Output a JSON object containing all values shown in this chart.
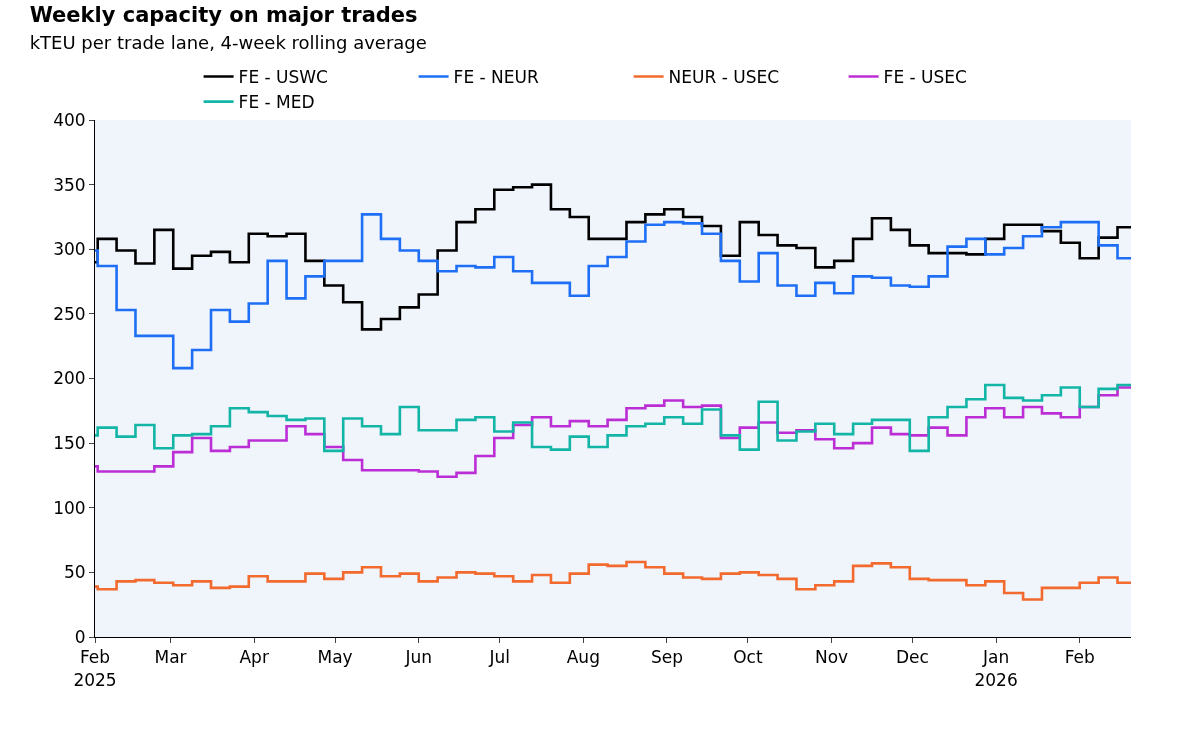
{
  "chart_data": {
    "type": "step",
    "title": "Weekly capacity on major trades",
    "subtitle": "kTEU per trade lane, 4-week rolling average",
    "x": [
      "2025-02-01",
      "2025-02-02",
      "2025-02-09",
      "2025-02-16",
      "2025-02-23",
      "2025-03-02",
      "2025-03-09",
      "2025-03-16",
      "2025-03-23",
      "2025-03-30",
      "2025-04-06",
      "2025-04-13",
      "2025-04-20",
      "2025-04-27",
      "2025-05-04",
      "2025-05-11",
      "2025-05-18",
      "2025-05-25",
      "2025-06-01",
      "2025-06-08",
      "2025-06-15",
      "2025-06-22",
      "2025-06-29",
      "2025-07-06",
      "2025-07-13",
      "2025-07-20",
      "2025-07-27",
      "2025-08-03",
      "2025-08-10",
      "2025-08-17",
      "2025-08-24",
      "2025-08-31",
      "2025-09-07",
      "2025-09-14",
      "2025-09-21",
      "2025-09-28",
      "2025-10-05",
      "2025-10-12",
      "2025-10-19",
      "2025-10-26",
      "2025-11-02",
      "2025-11-09",
      "2025-11-16",
      "2025-11-23",
      "2025-11-30",
      "2025-12-07",
      "2025-12-14",
      "2025-12-21",
      "2025-12-28",
      "2026-01-04",
      "2026-01-11",
      "2026-01-18",
      "2026-01-25",
      "2026-02-01",
      "2026-02-08",
      "2026-02-15",
      "2026-02-20"
    ],
    "series": [
      {
        "name": "FE - USWC",
        "color": "#000000",
        "values": [
          290,
          308,
          299,
          289,
          315,
          285,
          295,
          298,
          290,
          312,
          310,
          312,
          291,
          272,
          259,
          238,
          246,
          255,
          265,
          299,
          321,
          331,
          346,
          348,
          350,
          331,
          325,
          308,
          308,
          321,
          327,
          331,
          325,
          318,
          295,
          321,
          311,
          303,
          301,
          286,
          291,
          308,
          324,
          315,
          303,
          297,
          297,
          296,
          308,
          319,
          319,
          314,
          305,
          293,
          309,
          317,
          317
        ]
      },
      {
        "name": "FE - NEUR",
        "color": "#1e6ff5",
        "values": [
          299,
          287,
          253,
          233,
          233,
          208,
          222,
          253,
          244,
          258,
          291,
          262,
          279,
          291,
          291,
          327,
          308,
          299,
          291,
          283,
          287,
          286,
          294,
          283,
          274,
          274,
          264,
          287,
          294,
          306,
          319,
          321,
          320,
          312,
          291,
          275,
          297,
          272,
          264,
          274,
          266,
          279,
          278,
          272,
          271,
          279,
          302,
          308,
          296,
          301,
          310,
          317,
          321,
          321,
          303,
          293,
          293
        ]
      },
      {
        "name": "NEUR - USEC",
        "color": "#f26a2e",
        "values": [
          39,
          37,
          43,
          44,
          42,
          40,
          43,
          38,
          39,
          47,
          43,
          43,
          49,
          45,
          50,
          54,
          47,
          49,
          43,
          46,
          50,
          49,
          47,
          43,
          48,
          42,
          49,
          56,
          55,
          58,
          54,
          49,
          46,
          45,
          49,
          50,
          48,
          45,
          37,
          40,
          43,
          55,
          57,
          54,
          45,
          44,
          44,
          40,
          43,
          34,
          29,
          38,
          38,
          42,
          46,
          42,
          42
        ]
      },
      {
        "name": "FE - USEC",
        "color": "#bb2ed6",
        "values": [
          132,
          128,
          128,
          128,
          132,
          143,
          154,
          144,
          147,
          152,
          152,
          163,
          157,
          147,
          137,
          129,
          129,
          129,
          128,
          124,
          127,
          140,
          154,
          164,
          170,
          163,
          167,
          163,
          168,
          177,
          179,
          183,
          178,
          179,
          154,
          162,
          166,
          158,
          160,
          153,
          146,
          150,
          162,
          157,
          156,
          162,
          156,
          170,
          177,
          170,
          178,
          173,
          170,
          178,
          187,
          193,
          193
        ]
      },
      {
        "name": "FE - MED",
        "color": "#13b5a6",
        "values": [
          156,
          162,
          155,
          164,
          146,
          156,
          157,
          163,
          177,
          174,
          171,
          168,
          169,
          144,
          169,
          163,
          157,
          178,
          160,
          160,
          168,
          170,
          159,
          166,
          147,
          145,
          155,
          147,
          156,
          163,
          165,
          170,
          165,
          176,
          156,
          145,
          182,
          152,
          159,
          165,
          157,
          165,
          168,
          168,
          144,
          170,
          178,
          184,
          195,
          185,
          183,
          187,
          193,
          178,
          192,
          195,
          195
        ]
      }
    ],
    "xlim": [
      "2025-02-01",
      "2026-02-20"
    ],
    "xticks": [
      {
        "value": "2025-02-01",
        "label": "Feb\n2025"
      },
      {
        "value": "2025-03-01",
        "label": "Mar"
      },
      {
        "value": "2025-04-01",
        "label": "Apr"
      },
      {
        "value": "2025-05-01",
        "label": "May"
      },
      {
        "value": "2025-06-01",
        "label": "Jun"
      },
      {
        "value": "2025-07-01",
        "label": "Jul"
      },
      {
        "value": "2025-08-01",
        "label": "Aug"
      },
      {
        "value": "2025-09-01",
        "label": "Sep"
      },
      {
        "value": "2025-10-01",
        "label": "Oct"
      },
      {
        "value": "2025-11-01",
        "label": "Nov"
      },
      {
        "value": "2025-12-01",
        "label": "Dec"
      },
      {
        "value": "2026-01-01",
        "label": "Jan\n2026"
      },
      {
        "value": "2026-02-01",
        "label": "Feb"
      }
    ],
    "ylim": [
      0,
      400
    ],
    "yticks": [
      0,
      50,
      100,
      150,
      200,
      250,
      300,
      350,
      400
    ],
    "grid": false,
    "legend": "top",
    "line_style": "solid",
    "marker": "none"
  }
}
